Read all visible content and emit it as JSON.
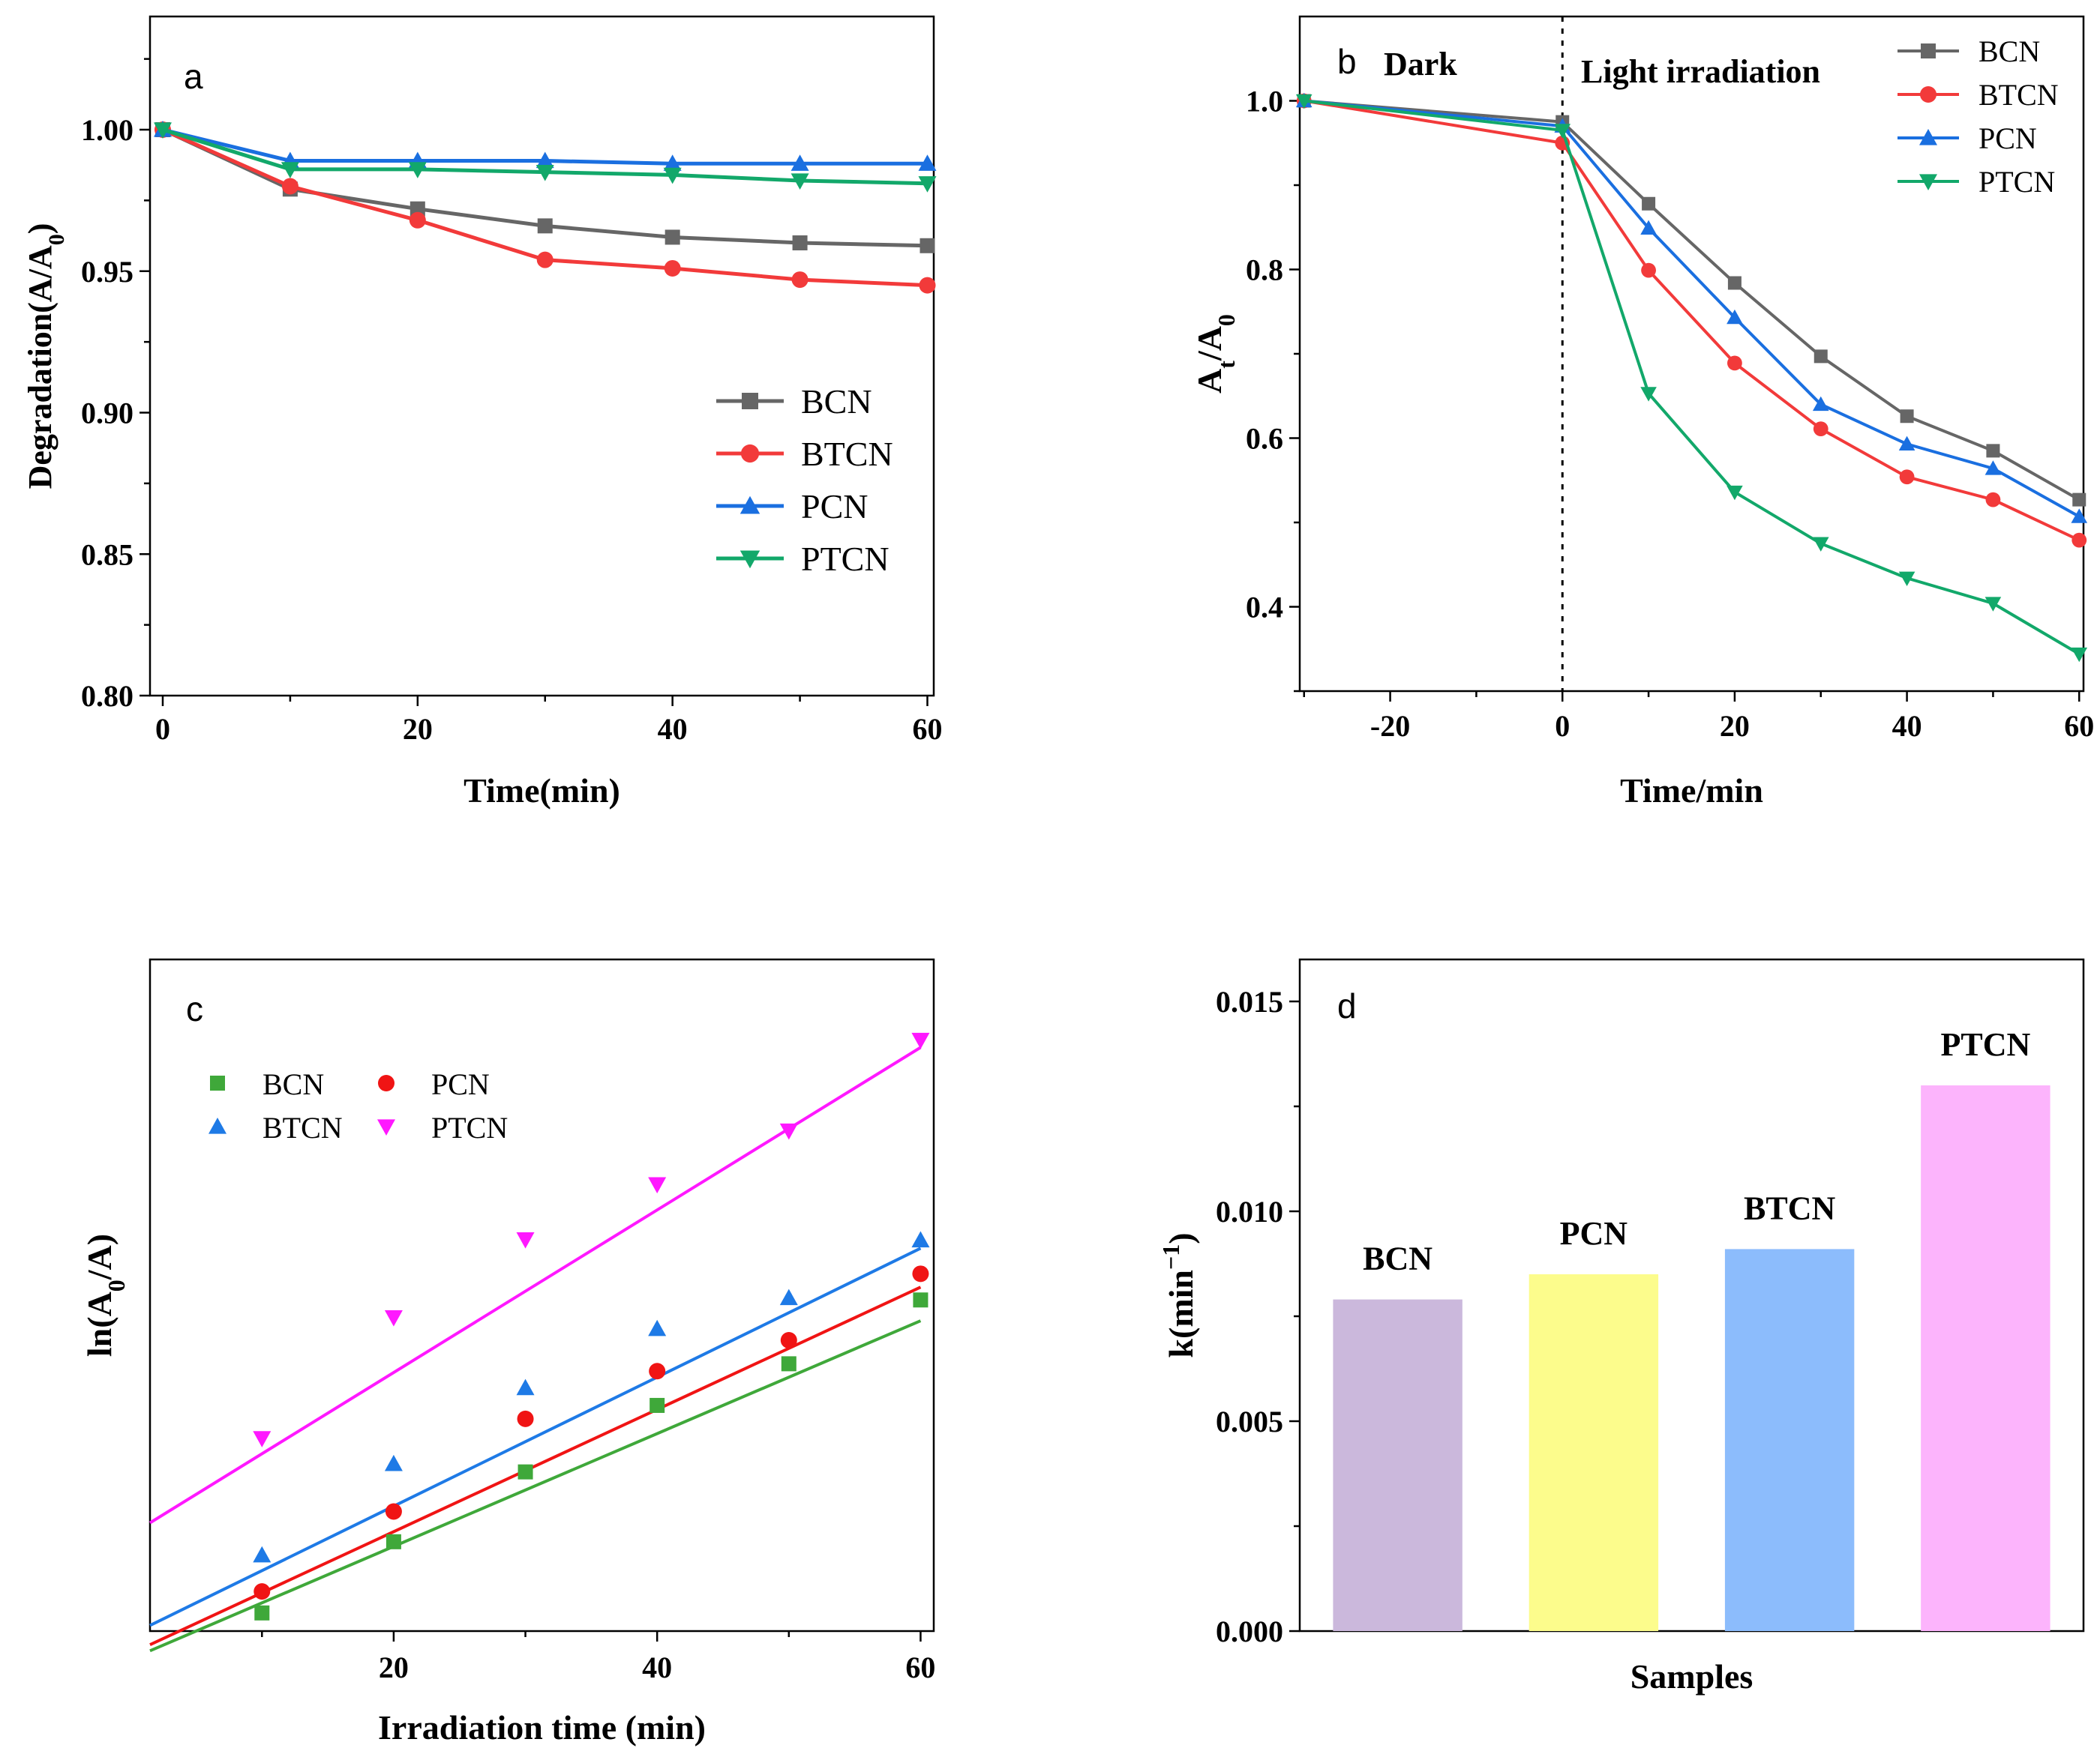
{
  "chart_data": [
    {
      "panel": "a",
      "type": "line",
      "xlabel": "Time(min)",
      "ylabel": "Degradation(A/A0)",
      "xlim": [
        -1,
        60.5
      ],
      "ylim": [
        0.8,
        1.04
      ],
      "xticks": [
        0,
        20,
        40,
        60
      ],
      "yticks": [
        0.8,
        0.85,
        0.9,
        0.95,
        1.0
      ],
      "ytick_labels": [
        "0.80",
        "0.85",
        "0.90",
        "0.95",
        "1.00"
      ],
      "x": [
        0,
        10,
        20,
        30,
        40,
        50,
        60
      ],
      "legend_position": "center-right",
      "series": [
        {
          "name": "BCN",
          "color": "#666666",
          "marker": "square",
          "values": [
            1.0,
            0.979,
            0.972,
            0.966,
            0.962,
            0.96,
            0.959
          ]
        },
        {
          "name": "BTCN",
          "color": "#f23a3a",
          "marker": "circle",
          "values": [
            1.0,
            0.98,
            0.968,
            0.954,
            0.951,
            0.947,
            0.945
          ]
        },
        {
          "name": "PCN",
          "color": "#1a6fe0",
          "marker": "triangle-up",
          "values": [
            1.0,
            0.989,
            0.989,
            0.989,
            0.988,
            0.988,
            0.988
          ]
        },
        {
          "name": "PTCN",
          "color": "#12a86a",
          "marker": "triangle-down",
          "values": [
            1.0,
            0.986,
            0.986,
            0.985,
            0.984,
            0.982,
            0.981
          ]
        }
      ]
    },
    {
      "panel": "b",
      "type": "line",
      "xlabel": "Time/min",
      "ylabel_main": "A",
      "ylabel_sub1": "t",
      "ylabel_mid": "/A",
      "ylabel_sub2": "0",
      "xlim": [
        -30.5,
        60.5
      ],
      "ylim": [
        0.3,
        1.1
      ],
      "xticks": [
        -20,
        0,
        20,
        40,
        60
      ],
      "yticks": [
        0.4,
        0.6,
        0.8,
        1.0
      ],
      "ytick_labels": [
        "0.4",
        "0.6",
        "0.8",
        "1.0"
      ],
      "x": [
        -30,
        0,
        10,
        20,
        30,
        40,
        50,
        60
      ],
      "annotations": {
        "dark": "Dark",
        "light": "Light irradiation"
      },
      "legend_position": "top-right",
      "series": [
        {
          "name": "BCN",
          "color": "#666666",
          "marker": "square",
          "values": [
            1.0,
            0.975,
            0.878,
            0.784,
            0.697,
            0.626,
            0.585,
            0.527
          ]
        },
        {
          "name": "BTCN",
          "color": "#f23a3a",
          "marker": "circle",
          "values": [
            1.0,
            0.95,
            0.799,
            0.689,
            0.611,
            0.554,
            0.527,
            0.479
          ]
        },
        {
          "name": "PCN",
          "color": "#1a6fe0",
          "marker": "triangle-up",
          "values": [
            1.0,
            0.97,
            0.849,
            0.743,
            0.64,
            0.593,
            0.564,
            0.507
          ]
        },
        {
          "name": "PTCN",
          "color": "#12a86a",
          "marker": "triangle-down",
          "values": [
            1.0,
            0.965,
            0.653,
            0.536,
            0.475,
            0.434,
            0.404,
            0.344
          ]
        }
      ]
    },
    {
      "panel": "c",
      "type": "scatter",
      "xlabel": "Irradiation time (min)",
      "ylabel": "ln(A0/A)",
      "xlim": [
        1.5,
        61
      ],
      "ylim": [
        0,
        1
      ],
      "xticks": [
        20,
        40,
        60
      ],
      "x": [
        10,
        20,
        30,
        40,
        50,
        60
      ],
      "legend_position": "top-left",
      "series": [
        {
          "name": "BCN",
          "color": "#3fa83a",
          "marker": "square",
          "values": [
            0.027,
            0.133,
            0.237,
            0.336,
            0.398,
            0.493
          ],
          "fit": [
            -0.042,
            0.0084
          ]
        },
        {
          "name": "PCN",
          "color": "#f01414",
          "marker": "circle",
          "values": [
            0.059,
            0.178,
            0.316,
            0.387,
            0.433,
            0.532
          ],
          "fit": [
            -0.034,
            0.0091
          ]
        },
        {
          "name": "BTCN",
          "color": "#1e7ae6",
          "marker": "triangle-up",
          "values": [
            0.113,
            0.249,
            0.362,
            0.45,
            0.496,
            0.582
          ],
          "fit": [
            -0.006,
            0.0096
          ]
        },
        {
          "name": "PTCN",
          "color": "#ff18ff",
          "marker": "triangle-down",
          "values": [
            0.287,
            0.467,
            0.583,
            0.665,
            0.745,
            0.88
          ],
          "fit": [
            0.143,
            0.0121
          ]
        }
      ]
    },
    {
      "panel": "d",
      "type": "bar",
      "xlabel": "Samples",
      "ylabel_main": "k(min",
      "ylabel_sup": "−1",
      "ylabel_end": ")",
      "ylim": [
        0,
        0.016
      ],
      "yticks": [
        0,
        0.005,
        0.01,
        0.015
      ],
      "ytick_labels": [
        "0.000",
        "0.005",
        "0.010",
        "0.015"
      ],
      "categories": [
        "BCN",
        "PCN",
        "BTCN",
        "PTCN"
      ],
      "values": [
        0.0079,
        0.0085,
        0.0091,
        0.013
      ],
      "colors": [
        "#cbb8dc",
        "#fcfc8c",
        "#8cbcfc",
        "#fcb4fc"
      ]
    }
  ]
}
